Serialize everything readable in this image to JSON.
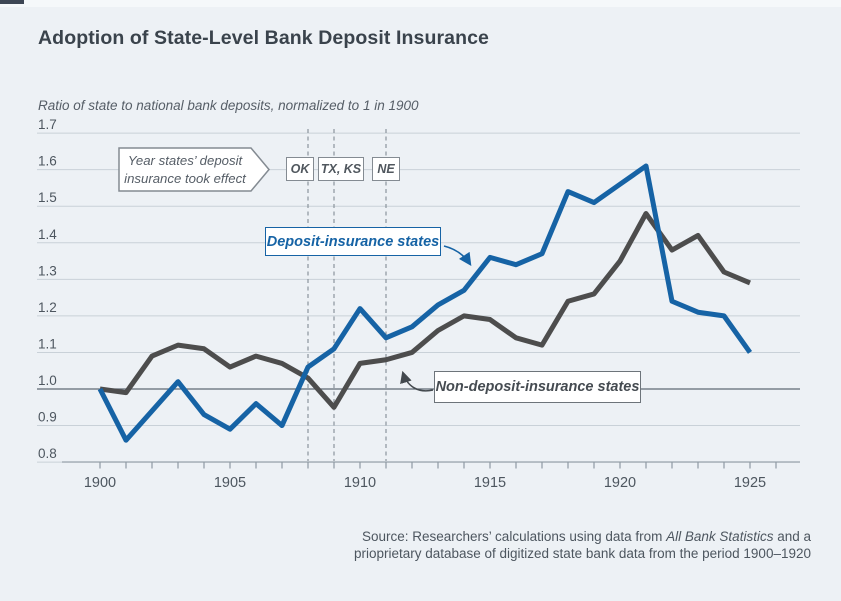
{
  "page": {
    "title": "Adoption of State-Level Bank Deposit Insurance",
    "subtitle": "Ratio of state to national bank deposits, normalized to 1 in 1900",
    "background_color": "#edf1f5"
  },
  "chart_data": {
    "type": "line",
    "x": [
      1900,
      1901,
      1902,
      1903,
      1904,
      1905,
      1906,
      1907,
      1908,
      1909,
      1910,
      1911,
      1912,
      1913,
      1914,
      1915,
      1916,
      1917,
      1918,
      1919,
      1920,
      1921,
      1922,
      1923,
      1924,
      1925
    ],
    "series": [
      {
        "name": "Deposit-insurance states",
        "color": "#1663a5",
        "values": [
          1.0,
          0.86,
          0.94,
          1.02,
          0.93,
          0.89,
          0.96,
          0.9,
          1.06,
          1.11,
          1.22,
          1.14,
          1.17,
          1.23,
          1.27,
          1.36,
          1.34,
          1.37,
          1.54,
          1.51,
          1.56,
          1.61,
          1.24,
          1.21,
          1.2,
          1.1
        ]
      },
      {
        "name": "Non-deposit-insurance states",
        "color": "#4d4d4d",
        "values": [
          1.0,
          0.99,
          1.09,
          1.12,
          1.11,
          1.06,
          1.09,
          1.07,
          1.03,
          0.95,
          1.07,
          1.08,
          1.1,
          1.16,
          1.2,
          1.19,
          1.14,
          1.12,
          1.24,
          1.26,
          1.35,
          1.48,
          1.38,
          1.42,
          1.32,
          1.29
        ]
      }
    ],
    "ylim": [
      0.8,
      1.7
    ],
    "yticks": [
      0.8,
      0.9,
      1.0,
      1.1,
      1.2,
      1.3,
      1.4,
      1.5,
      1.6,
      1.7
    ],
    "baseline_value": 1.0,
    "xticks_labeled": [
      1900,
      1905,
      1910,
      1915,
      1920,
      1925
    ],
    "xticks_minor_range": [
      1900,
      1926
    ],
    "grid": "horizontal",
    "legend_position": "inline-annotations",
    "event_lines": [
      {
        "year": 1908,
        "label": "OK"
      },
      {
        "year": 1909,
        "label": "TX, KS"
      },
      {
        "year": 1911,
        "label": "NE"
      }
    ],
    "event_callout": {
      "line1": "Year states’ deposit",
      "line2": "insurance took effect"
    }
  },
  "source": {
    "line1_prefix": "Source: Researchers’ calculations using data from ",
    "line1_italic": "All Bank Statistics",
    "line1_suffix": " and a",
    "line2": "prioprietary database of digitized state bank data from the period 1900–1920"
  }
}
